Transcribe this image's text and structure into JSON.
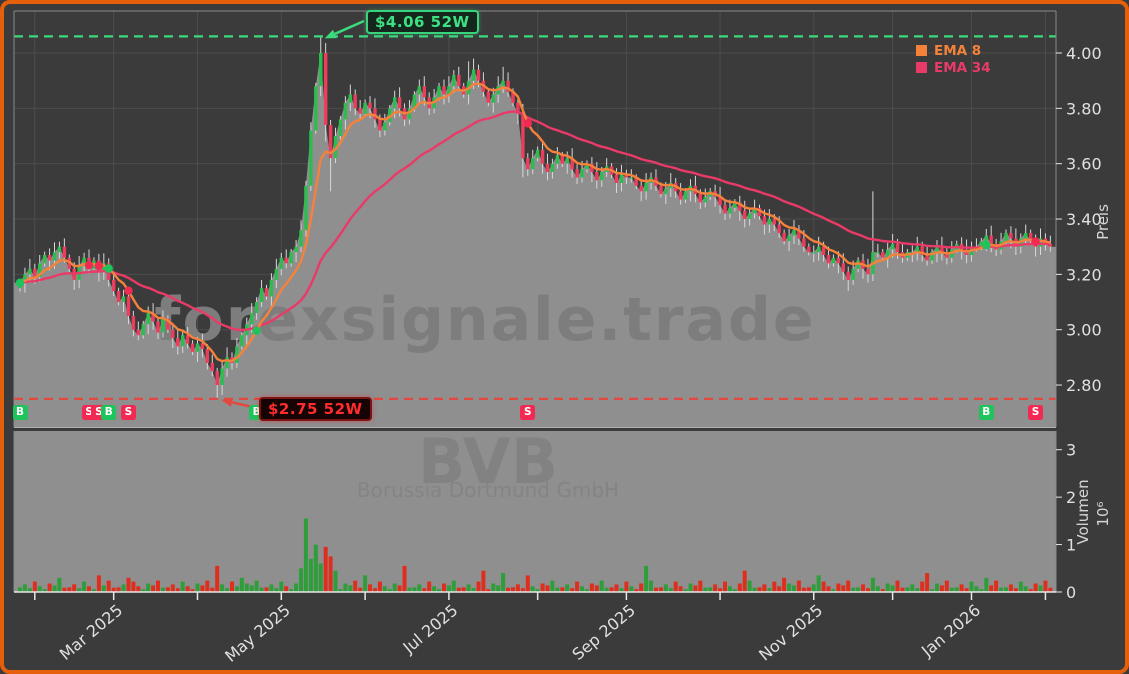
{
  "watermark": {
    "main": "forexsignale.trade",
    "symbol": "BVB",
    "subtitle": "Borussia Dortmund GmbH"
  },
  "legend": {
    "items": [
      {
        "label": "EMA 8",
        "color": "#f5823b"
      },
      {
        "label": "EMA 34",
        "color": "#e93a68"
      }
    ]
  },
  "axes": {
    "price_label": "Preis",
    "volume_label": "Volumen",
    "volume_exponent": "10⁶",
    "price_ticks": [
      {
        "value": 4.0,
        "label": "4.00"
      },
      {
        "value": 3.8,
        "label": "3.80"
      },
      {
        "value": 3.6,
        "label": "3.60"
      },
      {
        "value": 3.4,
        "label": "3.40"
      },
      {
        "value": 3.2,
        "label": "3.20"
      },
      {
        "value": 3.0,
        "label": "3.00"
      },
      {
        "value": 2.8,
        "label": "2.80"
      }
    ],
    "volume_ticks": [
      {
        "value": 0,
        "label": "0"
      },
      {
        "value": 1,
        "label": "1"
      },
      {
        "value": 2,
        "label": "2"
      },
      {
        "value": 3,
        "label": "3"
      }
    ],
    "month_ticks": [
      {
        "i": 3,
        "label": ""
      },
      {
        "i": 19,
        "label": "Mar 2025"
      },
      {
        "i": 36,
        "label": ""
      },
      {
        "i": 53,
        "label": "May 2025"
      },
      {
        "i": 70,
        "label": ""
      },
      {
        "i": 87,
        "label": "Jul 2025"
      },
      {
        "i": 105,
        "label": ""
      },
      {
        "i": 123,
        "label": "Sep 2025"
      },
      {
        "i": 142,
        "label": ""
      },
      {
        "i": 161,
        "label": "Nov 2025"
      },
      {
        "i": 177,
        "label": ""
      },
      {
        "i": 193,
        "label": "Jan 2026"
      },
      {
        "i": 208,
        "label": ""
      }
    ]
  },
  "levels": [
    {
      "price": 4.06,
      "label": "$4.06 52W",
      "color": "#3bda7d",
      "anchor_index": 61
    },
    {
      "price": 2.75,
      "label": "$2.75 52W",
      "color": "#e54840",
      "anchor_index": 40
    }
  ],
  "signals": [
    {
      "i": 0,
      "label": "B"
    },
    {
      "i": 14,
      "label": "S"
    },
    {
      "i": 16,
      "label": "S"
    },
    {
      "i": 18,
      "label": "B"
    },
    {
      "i": 22,
      "label": "S"
    },
    {
      "i": 48,
      "label": "B"
    },
    {
      "i": 103,
      "label": "S"
    },
    {
      "i": 196,
      "label": "B"
    },
    {
      "i": 206,
      "label": "S"
    }
  ],
  "chart_data": {
    "type": "candlestick_with_volume",
    "title": "",
    "price_axis_label": "Preis",
    "volume_axis_label": "Volumen 10^6",
    "x_range": [
      "Feb 2025",
      "Feb 2026"
    ],
    "price_ylim": [
      2.65,
      4.15
    ],
    "volume_ylim_millions": [
      0,
      3.4
    ],
    "week52_high": 4.06,
    "week52_low": 2.75,
    "ema_periods": [
      8,
      34
    ],
    "first_open": 3.15,
    "closes": [
      3.17,
      3.2,
      3.22,
      3.19,
      3.24,
      3.27,
      3.25,
      3.28,
      3.3,
      3.26,
      3.22,
      3.18,
      3.23,
      3.26,
      3.22,
      3.25,
      3.21,
      3.24,
      3.18,
      3.14,
      3.1,
      3.12,
      3.05,
      3.0,
      2.98,
      3.02,
      3.06,
      3.03,
      2.99,
      3.04,
      3.0,
      2.97,
      2.94,
      2.98,
      2.95,
      2.92,
      2.95,
      2.93,
      2.88,
      2.85,
      2.8,
      2.86,
      2.9,
      2.88,
      2.94,
      2.98,
      3.02,
      3.06,
      3.1,
      3.15,
      3.12,
      3.18,
      3.22,
      3.26,
      3.24,
      3.28,
      3.3,
      3.36,
      3.52,
      3.72,
      3.88,
      4.0,
      3.74,
      3.62,
      3.7,
      3.76,
      3.82,
      3.85,
      3.8,
      3.78,
      3.82,
      3.8,
      3.76,
      3.72,
      3.75,
      3.8,
      3.84,
      3.8,
      3.76,
      3.8,
      3.85,
      3.88,
      3.84,
      3.8,
      3.84,
      3.88,
      3.85,
      3.88,
      3.92,
      3.88,
      3.85,
      3.9,
      3.94,
      3.9,
      3.86,
      3.82,
      3.85,
      3.88,
      3.9,
      3.86,
      3.82,
      3.78,
      3.62,
      3.58,
      3.62,
      3.65,
      3.6,
      3.57,
      3.6,
      3.63,
      3.6,
      3.62,
      3.58,
      3.55,
      3.58,
      3.6,
      3.57,
      3.54,
      3.57,
      3.59,
      3.56,
      3.53,
      3.56,
      3.55,
      3.55,
      3.52,
      3.5,
      3.53,
      3.55,
      3.52,
      3.49,
      3.51,
      3.53,
      3.5,
      3.47,
      3.5,
      3.52,
      3.49,
      3.46,
      3.48,
      3.5,
      3.48,
      3.45,
      3.42,
      3.44,
      3.46,
      3.43,
      3.4,
      3.42,
      3.44,
      3.41,
      3.38,
      3.4,
      3.38,
      3.35,
      3.32,
      3.34,
      3.36,
      3.33,
      3.3,
      3.28,
      3.28,
      3.3,
      3.27,
      3.24,
      3.26,
      3.24,
      3.21,
      3.18,
      3.22,
      3.25,
      3.22,
      3.2,
      3.28,
      3.28,
      3.26,
      3.29,
      3.31,
      3.28,
      3.26,
      3.28,
      3.28,
      3.3,
      3.27,
      3.25,
      3.28,
      3.3,
      3.28,
      3.26,
      3.29,
      3.31,
      3.29,
      3.27,
      3.3,
      3.3,
      3.32,
      3.34,
      3.31,
      3.29,
      3.32,
      3.35,
      3.33,
      3.3,
      3.33,
      3.35,
      3.32,
      3.3,
      3.33,
      3.31,
      3.3
    ],
    "overrides": {
      "40": {
        "l": 2.75
      },
      "57": {
        "l": 3.28
      },
      "61": {
        "h": 4.06
      },
      "62": {
        "l": 3.68
      },
      "63": {
        "l": 3.5
      },
      "91": {
        "h": 3.97
      },
      "92": {
        "h": 3.98
      },
      "98": {
        "h": 3.95
      },
      "102": {
        "o": 3.78,
        "l": 3.55
      },
      "168": {
        "l": 3.14
      },
      "173": {
        "h": 3.5
      }
    },
    "volumes_millions": [
      0.1,
      0.16,
      0.08,
      0.22,
      0.12,
      0.06,
      0.18,
      0.14,
      0.3,
      0.09,
      0.1,
      0.16,
      0.08,
      0.22,
      0.12,
      0.06,
      0.35,
      0.14,
      0.24,
      0.09,
      0.1,
      0.16,
      0.3,
      0.22,
      0.12,
      0.06,
      0.18,
      0.14,
      0.24,
      0.09,
      0.1,
      0.16,
      0.08,
      0.22,
      0.12,
      0.06,
      0.18,
      0.14,
      0.24,
      0.09,
      0.55,
      0.16,
      0.08,
      0.22,
      0.12,
      0.3,
      0.18,
      0.14,
      0.24,
      0.09,
      0.1,
      0.16,
      0.08,
      0.22,
      0.12,
      0.06,
      0.18,
      0.5,
      1.55,
      0.7,
      1.0,
      0.6,
      0.95,
      0.75,
      0.45,
      0.06,
      0.18,
      0.14,
      0.24,
      0.09,
      0.35,
      0.16,
      0.08,
      0.22,
      0.12,
      0.06,
      0.18,
      0.14,
      0.55,
      0.09,
      0.1,
      0.16,
      0.08,
      0.22,
      0.12,
      0.06,
      0.18,
      0.14,
      0.24,
      0.09,
      0.1,
      0.16,
      0.08,
      0.22,
      0.45,
      0.06,
      0.18,
      0.14,
      0.4,
      0.09,
      0.1,
      0.16,
      0.08,
      0.35,
      0.12,
      0.06,
      0.18,
      0.14,
      0.24,
      0.09,
      0.1,
      0.16,
      0.08,
      0.22,
      0.12,
      0.06,
      0.18,
      0.14,
      0.24,
      0.09,
      0.1,
      0.16,
      0.08,
      0.22,
      0.12,
      0.06,
      0.18,
      0.55,
      0.24,
      0.09,
      0.1,
      0.16,
      0.08,
      0.22,
      0.12,
      0.06,
      0.18,
      0.14,
      0.24,
      0.09,
      0.1,
      0.16,
      0.08,
      0.22,
      0.12,
      0.06,
      0.18,
      0.45,
      0.24,
      0.09,
      0.1,
      0.16,
      0.08,
      0.22,
      0.12,
      0.3,
      0.18,
      0.14,
      0.24,
      0.09,
      0.1,
      0.16,
      0.35,
      0.22,
      0.12,
      0.06,
      0.18,
      0.14,
      0.24,
      0.09,
      0.1,
      0.16,
      0.08,
      0.3,
      0.12,
      0.06,
      0.18,
      0.14,
      0.24,
      0.09,
      0.1,
      0.16,
      0.08,
      0.22,
      0.4,
      0.06,
      0.18,
      0.14,
      0.24,
      0.09,
      0.1,
      0.16,
      0.08,
      0.22,
      0.12,
      0.06,
      0.3,
      0.14,
      0.24,
      0.09,
      0.1,
      0.16,
      0.08,
      0.22,
      0.12,
      0.06,
      0.18,
      0.14,
      0.24,
      0.09
    ],
    "colors": {
      "candle_up": "#2dbd4e",
      "candle_down": "#ee3d5c",
      "volume_up": "#2d9e3a",
      "volume_down": "#dd2e1e",
      "ema8": "#f5823b",
      "ema34": "#e93a68",
      "area_fill": "#8f8f8f",
      "high_line": "#3bda7d",
      "low_line": "#e54840",
      "buy_marker": "#1fc35c",
      "sell_marker": "#f22a53"
    }
  }
}
